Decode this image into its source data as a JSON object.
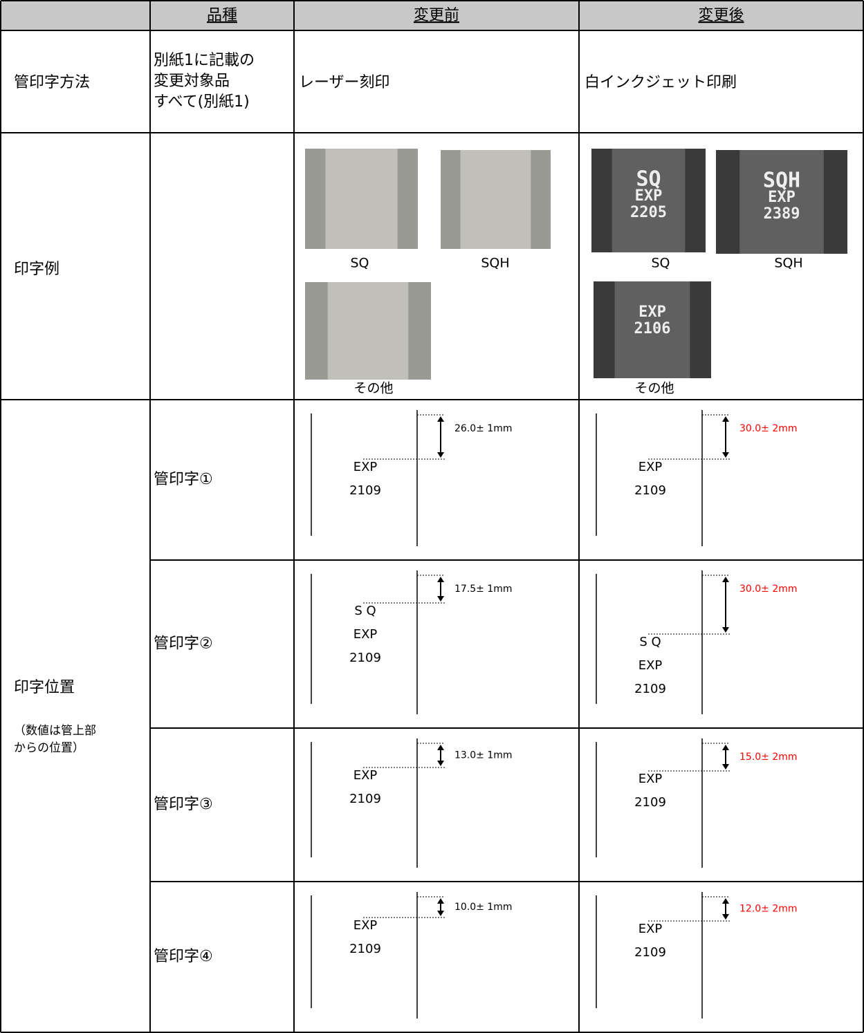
{
  "table": {
    "header": {
      "kind": "品種",
      "before": "変更前",
      "after": "変更後"
    },
    "method": {
      "label": "管印字方法",
      "kind": [
        "別紙1に記載の",
        "変更対象品",
        "すべて(別紙1)"
      ],
      "before": "レーザー刻印",
      "after": "白インクジェット印刷"
    },
    "example": {
      "label": "印字例",
      "before": [
        {
          "caption": "SQ"
        },
        {
          "caption": "SQH"
        },
        {
          "caption": "その他"
        }
      ],
      "after": [
        {
          "caption": "SQ",
          "photo_text": [
            "SQ",
            "EXP",
            "2205"
          ]
        },
        {
          "caption": "SQH",
          "photo_text": [
            "SQH",
            "EXP",
            "2389"
          ]
        },
        {
          "caption": "その他",
          "photo_text": [
            "EXP",
            "2106"
          ]
        }
      ]
    },
    "position": {
      "label": "印字位置",
      "note": [
        "（数値は管上部",
        "からの位置）"
      ],
      "before_color": "#000000",
      "after_color": "#ff0000",
      "rows": [
        {
          "name": "管印字①",
          "before": {
            "dimension": "26.0± 1mm",
            "lines": [
              "EXP",
              "2109"
            ]
          },
          "after": {
            "dimension": "30.0± 2mm",
            "lines": [
              "EXP",
              "2109"
            ]
          }
        },
        {
          "name": "管印字②",
          "before": {
            "dimension": "17.5± 1mm",
            "lines": [
              "S Q",
              "EXP",
              "2109"
            ]
          },
          "after": {
            "dimension": "30.0± 2mm",
            "lines": [
              "S Q",
              "EXP",
              "2109"
            ]
          }
        },
        {
          "name": "管印字③",
          "before": {
            "dimension": "13.0± 1mm",
            "lines": [
              "EXP",
              "2109"
            ]
          },
          "after": {
            "dimension": "15.0± 2mm",
            "lines": [
              "EXP",
              "2109"
            ]
          }
        },
        {
          "name": "管印字④",
          "before": {
            "dimension": "10.0± 1mm",
            "lines": [
              "EXP",
              "2109"
            ]
          },
          "after": {
            "dimension": "12.0± 2mm",
            "lines": [
              "EXP",
              "2109"
            ]
          }
        }
      ]
    }
  }
}
